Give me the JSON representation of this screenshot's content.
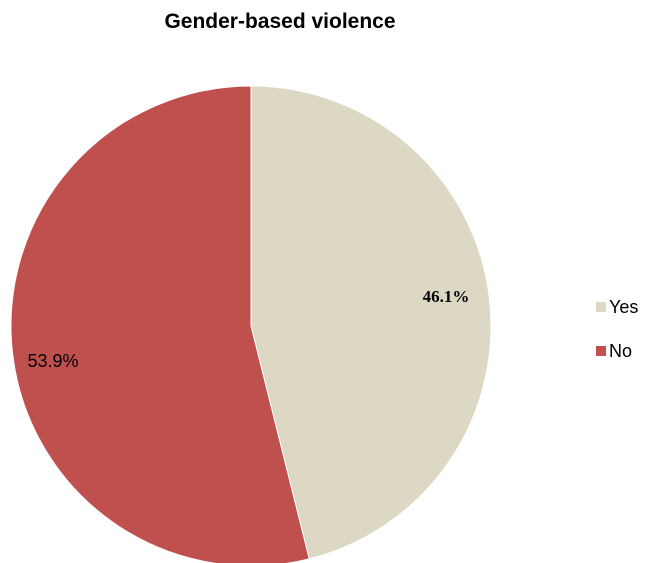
{
  "chart_data": {
    "type": "pie",
    "title": "Gender-based violence",
    "slices": [
      {
        "label": "Yes",
        "value": 46.1,
        "display": "46.1%",
        "color": "#ddd8c4"
      },
      {
        "label": "No",
        "value": 53.9,
        "display": "53.9%",
        "color": "#bf504d"
      }
    ],
    "legend_position": "right"
  }
}
